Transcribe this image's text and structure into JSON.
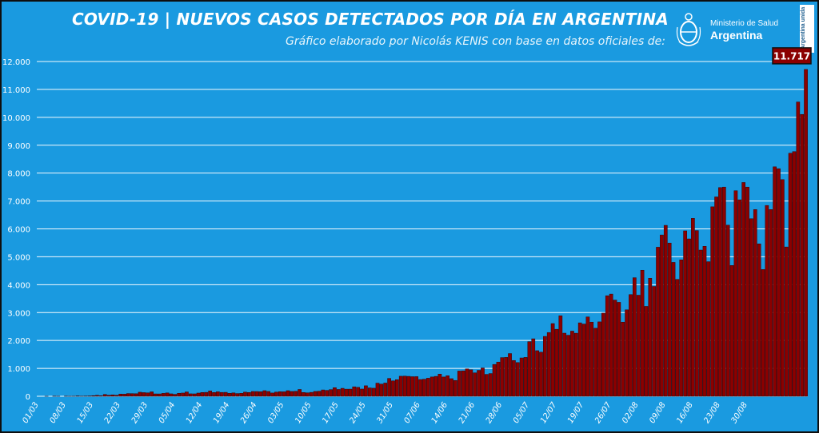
{
  "header": {
    "title": "COVID-19  |  NUEVOS CASOS DETECTADOS POR DÍA EN ARGENTINA",
    "subtitle": "Gráfico elaborado por Nicolás KENIS con base en datos oficiales de:"
  },
  "logo": {
    "line1": "Ministerio de Salud",
    "line2": "Argentina",
    "badge": "Argentina unida",
    "icon": "coat-of-arms-icon"
  },
  "colors": {
    "background": "#1a9ae0",
    "bar": "#8b0000",
    "grid": "#ffffff",
    "callout_bg": "#8b0000"
  },
  "chart_data": {
    "type": "bar",
    "xlabel": "",
    "ylabel": "",
    "ylim": [
      0,
      12000
    ],
    "yticks": [
      0,
      1000,
      2000,
      3000,
      4000,
      5000,
      6000,
      7000,
      8000,
      9000,
      10000,
      11000,
      12000
    ],
    "ytick_labels": [
      "0",
      "1.000",
      "2.000",
      "3.000",
      "4.000",
      "5.000",
      "6.000",
      "7.000",
      "8.000",
      "9.000",
      "10.000",
      "11.000",
      "12.000"
    ],
    "grid": true,
    "x_tick_labels": [
      "01/03",
      "08/03",
      "15/03",
      "22/03",
      "29/03",
      "05/04",
      "12/04",
      "19/04",
      "26/04",
      "03/05",
      "10/05",
      "17/05",
      "24/05",
      "31/05",
      "07/06",
      "14/06",
      "21/06",
      "28/06",
      "05/07",
      "12/07",
      "19/07",
      "26/07",
      "02/08",
      "09/08",
      "16/08",
      "23/08",
      "30/08"
    ],
    "start_date": "01/03",
    "values": [
      0,
      0,
      1,
      0,
      4,
      2,
      0,
      4,
      2,
      3,
      12,
      4,
      7,
      11,
      22,
      34,
      18,
      65,
      37,
      49,
      37,
      79,
      76,
      98,
      95,
      91,
      145,
      131,
      122,
      158,
      85,
      84,
      104,
      120,
      87,
      69,
      107,
      116,
      155,
      88,
      86,
      115,
      136,
      140,
      189,
      135,
      160,
      138,
      141,
      106,
      120,
      98,
      106,
      148,
      135,
      172,
      170,
      163,
      201,
      173,
      118,
      150,
      164,
      160,
      201,
      173,
      180,
      244,
      135,
      123,
      140,
      173,
      182,
      227,
      211,
      239,
      308,
      244,
      285,
      255,
      256,
      339,
      320,
      259,
      376,
      300,
      289,
      471,
      436,
      474,
      640,
      552,
      595,
      718,
      722,
      714,
      702,
      704,
      600,
      612,
      648,
      692,
      713,
      795,
      691,
      735,
      631,
      567,
      904,
      911,
      983,
      949,
      840,
      930,
      1014,
      785,
      814,
      1141,
      1226,
      1386,
      1393,
      1531,
      1282,
      1208,
      1374,
      1393,
      1957,
      2060,
      1634,
      1581,
      2146,
      2285,
      2606,
      2401,
      2886,
      2262,
      2189,
      2335,
      2260,
      2632,
      2590,
      2845,
      2657,
      2439,
      2667,
      2979,
      3604,
      3663,
      3449,
      3367,
      2657,
      3099,
      3645,
      4250,
      3623,
      4518,
      3223,
      4231,
      3937,
      5344,
      5782,
      6127,
      5493,
      4799,
      4190,
      4890,
      5929,
      5641,
      6377,
      5939,
      5241,
      5376,
      4824,
      6792,
      7147,
      7482,
      7498,
      6134,
      4688,
      7369,
      7043,
      7663,
      7498,
      6365,
      6693,
      5464,
      4543,
      6840,
      6693,
      8225,
      8159,
      7767,
      5352,
      8713,
      8771,
      10550,
      10104,
      11717
    ],
    "annotation": "11.717"
  }
}
